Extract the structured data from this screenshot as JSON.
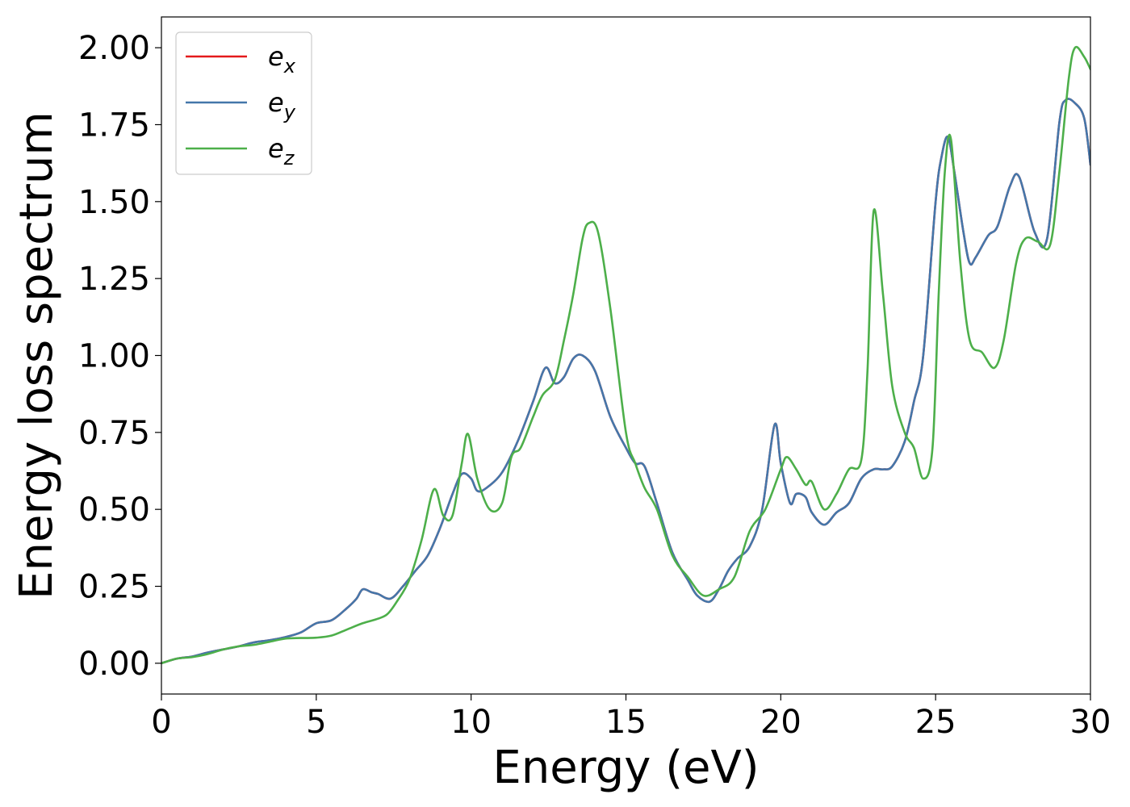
{
  "chart_data": {
    "type": "line",
    "xlabel": "Energy (eV)",
    "ylabel": "Energy loss spectrum",
    "xlim": [
      0,
      30
    ],
    "ylim": [
      -0.1,
      2.1
    ],
    "xticks": [
      0,
      5,
      10,
      15,
      20,
      25,
      30
    ],
    "yticks": [
      0.0,
      0.25,
      0.5,
      0.75,
      1.0,
      1.25,
      1.5,
      1.75,
      2.0
    ],
    "ytick_labels": [
      "0.00",
      "0.25",
      "0.50",
      "0.75",
      "1.00",
      "1.25",
      "1.50",
      "1.75",
      "2.00"
    ],
    "grid": false,
    "legend_position": "top-left",
    "series": [
      {
        "name": "e",
        "subscript": "x",
        "color": "#e41a1c",
        "x": [
          0,
          0.5,
          1,
          1.5,
          2,
          2.5,
          3,
          3.5,
          4,
          4.5,
          5,
          5.5,
          6,
          6.3,
          6.5,
          6.8,
          7,
          7.4,
          7.8,
          8.2,
          8.6,
          9,
          9.4,
          9.7,
          10,
          10.2,
          10.5,
          11,
          11.5,
          12,
          12.4,
          12.7,
          13,
          13.3,
          13.6,
          14,
          14.5,
          15,
          15.3,
          15.6,
          16,
          16.5,
          17,
          17.3,
          17.7,
          18,
          18.3,
          18.6,
          19,
          19.4,
          19.8,
          20,
          20.3,
          20.5,
          20.8,
          21,
          21.4,
          21.8,
          22.2,
          22.6,
          23,
          23.3,
          23.6,
          24,
          24.3,
          24.6,
          25,
          25.2,
          25.4,
          25.6,
          25.9,
          26.1,
          26.3,
          26.7,
          27,
          27.4,
          27.7,
          28.2,
          28.6,
          29,
          29.2,
          29.5,
          29.8,
          30
        ],
        "values": [
          0,
          0.015,
          0.022,
          0.035,
          0.045,
          0.055,
          0.068,
          0.075,
          0.085,
          0.1,
          0.13,
          0.14,
          0.18,
          0.21,
          0.24,
          0.23,
          0.225,
          0.21,
          0.25,
          0.3,
          0.35,
          0.44,
          0.55,
          0.615,
          0.6,
          0.56,
          0.57,
          0.62,
          0.72,
          0.85,
          0.96,
          0.91,
          0.93,
          0.99,
          1.0,
          0.95,
          0.8,
          0.7,
          0.65,
          0.64,
          0.52,
          0.36,
          0.27,
          0.22,
          0.2,
          0.24,
          0.3,
          0.34,
          0.38,
          0.5,
          0.775,
          0.65,
          0.52,
          0.55,
          0.54,
          0.49,
          0.45,
          0.49,
          0.52,
          0.6,
          0.63,
          0.63,
          0.64,
          0.72,
          0.85,
          1.0,
          1.5,
          1.65,
          1.71,
          1.6,
          1.4,
          1.3,
          1.32,
          1.39,
          1.42,
          1.55,
          1.58,
          1.4,
          1.38,
          1.76,
          1.83,
          1.82,
          1.77,
          1.62
        ]
      },
      {
        "name": "e",
        "subscript": "y",
        "color": "#4477aa",
        "x": [
          0,
          0.5,
          1,
          1.5,
          2,
          2.5,
          3,
          3.5,
          4,
          4.5,
          5,
          5.5,
          6,
          6.3,
          6.5,
          6.8,
          7,
          7.4,
          7.8,
          8.2,
          8.6,
          9,
          9.4,
          9.7,
          10,
          10.2,
          10.5,
          11,
          11.5,
          12,
          12.4,
          12.7,
          13,
          13.3,
          13.6,
          14,
          14.5,
          15,
          15.3,
          15.6,
          16,
          16.5,
          17,
          17.3,
          17.7,
          18,
          18.3,
          18.6,
          19,
          19.4,
          19.8,
          20,
          20.3,
          20.5,
          20.8,
          21,
          21.4,
          21.8,
          22.2,
          22.6,
          23,
          23.3,
          23.6,
          24,
          24.3,
          24.6,
          25,
          25.2,
          25.4,
          25.6,
          25.9,
          26.1,
          26.3,
          26.7,
          27,
          27.4,
          27.7,
          28.2,
          28.6,
          29,
          29.2,
          29.5,
          29.8,
          30
        ],
        "values": [
          0,
          0.015,
          0.022,
          0.035,
          0.045,
          0.055,
          0.068,
          0.075,
          0.085,
          0.1,
          0.13,
          0.14,
          0.18,
          0.21,
          0.24,
          0.23,
          0.225,
          0.21,
          0.25,
          0.3,
          0.35,
          0.44,
          0.55,
          0.615,
          0.6,
          0.56,
          0.57,
          0.62,
          0.72,
          0.85,
          0.96,
          0.91,
          0.93,
          0.99,
          1.0,
          0.95,
          0.8,
          0.7,
          0.65,
          0.64,
          0.52,
          0.36,
          0.27,
          0.22,
          0.2,
          0.24,
          0.3,
          0.34,
          0.38,
          0.5,
          0.775,
          0.65,
          0.52,
          0.55,
          0.54,
          0.49,
          0.45,
          0.49,
          0.52,
          0.6,
          0.63,
          0.63,
          0.64,
          0.72,
          0.85,
          1.0,
          1.5,
          1.65,
          1.71,
          1.6,
          1.4,
          1.3,
          1.32,
          1.39,
          1.42,
          1.55,
          1.58,
          1.4,
          1.38,
          1.76,
          1.83,
          1.82,
          1.77,
          1.62
        ]
      },
      {
        "name": "e",
        "subscript": "z",
        "color": "#4daf4a",
        "x": [
          0,
          0.5,
          1,
          1.5,
          2,
          2.5,
          3,
          3.5,
          4,
          4.5,
          5,
          5.5,
          6,
          6.5,
          7,
          7.3,
          7.6,
          8,
          8.4,
          8.8,
          9.1,
          9.4,
          9.7,
          9.9,
          10.2,
          10.6,
          11,
          11.3,
          11.6,
          12,
          12.3,
          12.7,
          13,
          13.3,
          13.6,
          13.8,
          14.1,
          14.5,
          15,
          15.3,
          15.6,
          16,
          16.5,
          17,
          17.5,
          18,
          18.5,
          19,
          19.5,
          20,
          20.2,
          20.5,
          20.8,
          21,
          21.4,
          21.8,
          22.2,
          22.6,
          22.8,
          23,
          23.3,
          23.6,
          24,
          24.3,
          24.6,
          24.9,
          25.1,
          25.3,
          25.5,
          25.8,
          26.1,
          26.5,
          26.9,
          27.2,
          27.6,
          27.9,
          28.3,
          28.7,
          29,
          29.3,
          29.5,
          29.8,
          30
        ],
        "values": [
          0,
          0.015,
          0.02,
          0.03,
          0.045,
          0.055,
          0.06,
          0.07,
          0.08,
          0.082,
          0.083,
          0.09,
          0.11,
          0.13,
          0.145,
          0.16,
          0.2,
          0.27,
          0.4,
          0.565,
          0.48,
          0.48,
          0.65,
          0.745,
          0.6,
          0.5,
          0.52,
          0.67,
          0.7,
          0.8,
          0.87,
          0.92,
          1.05,
          1.2,
          1.38,
          1.43,
          1.4,
          1.15,
          0.75,
          0.65,
          0.57,
          0.5,
          0.35,
          0.28,
          0.22,
          0.24,
          0.28,
          0.43,
          0.5,
          0.63,
          0.67,
          0.63,
          0.58,
          0.59,
          0.5,
          0.55,
          0.63,
          0.66,
          0.95,
          1.47,
          1.2,
          0.9,
          0.75,
          0.7,
          0.6,
          0.7,
          1.2,
          1.6,
          1.7,
          1.3,
          1.05,
          1.01,
          0.96,
          1.05,
          1.3,
          1.38,
          1.37,
          1.36,
          1.6,
          1.9,
          2.0,
          1.97,
          1.93
        ]
      }
    ]
  }
}
